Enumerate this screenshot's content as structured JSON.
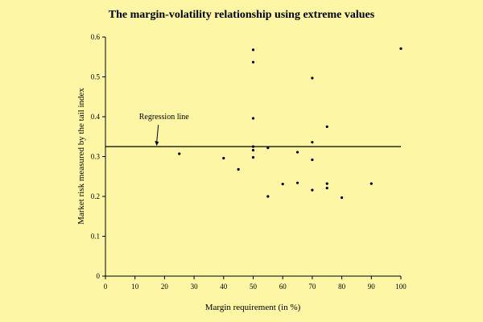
{
  "chart_data": {
    "type": "scatter",
    "title": "The margin-volatility relationship using extreme values",
    "xlabel": "Margin requirement (in %)",
    "ylabel": "Market risk measured by the tail index",
    "xlim": [
      0,
      100
    ],
    "ylim": [
      0,
      0.6
    ],
    "x_ticks": [
      0,
      10,
      20,
      30,
      40,
      50,
      60,
      70,
      80,
      90,
      100
    ],
    "y_ticks": [
      0,
      0.1,
      0.2,
      0.3,
      0.4,
      0.5,
      0.6
    ],
    "y_tick_labels": [
      "0",
      "0.1",
      "0.2",
      "0.3",
      "0.4",
      "0.5",
      "0.6"
    ],
    "grid": false,
    "colors": {
      "background": "#fdf6a5",
      "marks": "#000000"
    },
    "series": [
      {
        "points": [
          [
            25,
            0.307
          ],
          [
            40,
            0.296
          ],
          [
            45,
            0.268
          ],
          [
            50,
            0.568
          ],
          [
            50,
            0.537
          ],
          [
            50,
            0.396
          ],
          [
            50,
            0.325
          ],
          [
            50,
            0.316
          ],
          [
            50,
            0.298
          ],
          [
            55,
            0.322
          ],
          [
            55,
            0.2
          ],
          [
            60,
            0.231
          ],
          [
            65,
            0.234
          ],
          [
            65,
            0.311
          ],
          [
            70,
            0.497
          ],
          [
            70,
            0.336
          ],
          [
            70,
            0.292
          ],
          [
            70,
            0.216
          ],
          [
            75,
            0.375
          ],
          [
            75,
            0.232
          ],
          [
            75,
            0.221
          ],
          [
            80,
            0.197
          ],
          [
            90,
            0.232
          ],
          [
            100,
            0.571
          ]
        ]
      }
    ],
    "reference_line": {
      "y": 0.325
    },
    "annotations": [
      {
        "text": "Regression line",
        "x": 16,
        "y": 0.325
      }
    ]
  }
}
